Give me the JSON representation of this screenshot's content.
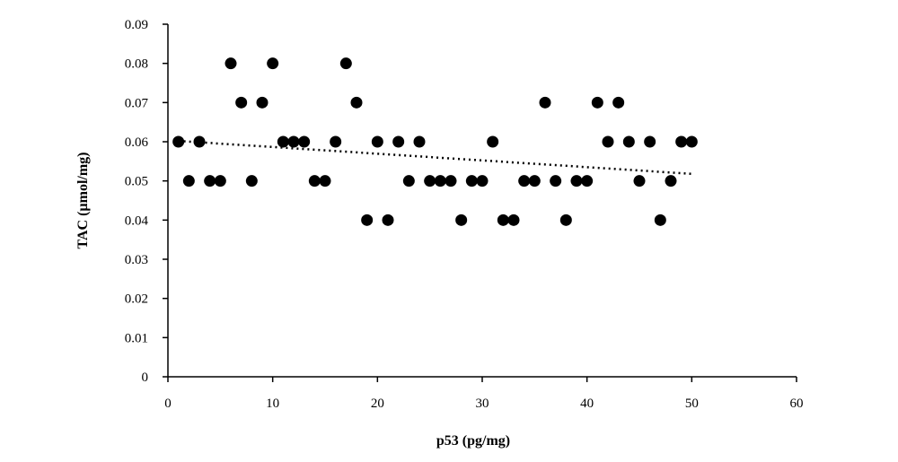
{
  "chart_data": {
    "type": "scatter",
    "title": "",
    "xlabel": "p53 (pg/mg)",
    "ylabel": "TAC (µmol/mg)",
    "xlim": [
      0,
      60
    ],
    "ylim": [
      0,
      0.09
    ],
    "xticks": [
      0,
      10,
      20,
      30,
      40,
      50,
      60
    ],
    "yticks": [
      0,
      0.01,
      0.02,
      0.03,
      0.04,
      0.05,
      0.06,
      0.07,
      0.08,
      0.09
    ],
    "xtick_labels": [
      "0",
      "10",
      "20",
      "30",
      "40",
      "50",
      "60"
    ],
    "ytick_labels": [
      "0",
      "0.01",
      "0.02",
      "0.03",
      "0.04",
      "0.05",
      "0.06",
      "0.07",
      "0.08",
      "0.09"
    ],
    "grid": false,
    "marker_color": "#000000",
    "series": [
      {
        "x": [
          1,
          2,
          3,
          4,
          5,
          6,
          7,
          8,
          9,
          10,
          11,
          12,
          13,
          14,
          15,
          16,
          17,
          18,
          19,
          20,
          21,
          22,
          23,
          24,
          25,
          26,
          27,
          28,
          29,
          30,
          31,
          32,
          33,
          34,
          35,
          36,
          37,
          38,
          39,
          40,
          41,
          42,
          43,
          44,
          45,
          46,
          47,
          48,
          49,
          50
        ],
        "y": [
          0.06,
          0.05,
          0.06,
          0.05,
          0.05,
          0.08,
          0.07,
          0.05,
          0.07,
          0.08,
          0.06,
          0.06,
          0.06,
          0.05,
          0.05,
          0.06,
          0.08,
          0.07,
          0.04,
          0.06,
          0.04,
          0.06,
          0.05,
          0.06,
          0.05,
          0.05,
          0.05,
          0.04,
          0.05,
          0.05,
          0.06,
          0.04,
          0.04,
          0.05,
          0.05,
          0.07,
          0.05,
          0.04,
          0.05,
          0.05,
          0.07,
          0.06,
          0.07,
          0.06,
          0.05,
          0.06,
          0.04,
          0.05,
          0.06,
          0.06
        ]
      }
    ],
    "trendline": {
      "type": "linear",
      "style": "dotted",
      "from": [
        1,
        0.0602
      ],
      "to": [
        50,
        0.0518
      ]
    }
  }
}
